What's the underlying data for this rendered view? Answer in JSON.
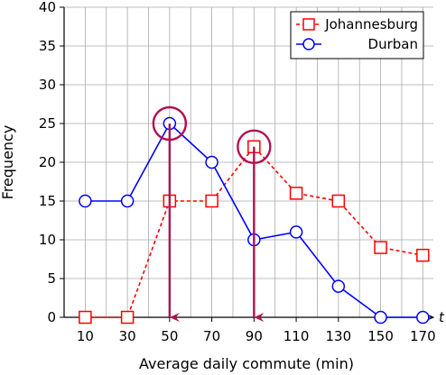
{
  "chart_data": {
    "type": "line",
    "xlabel": "Average daily commute (min)",
    "ylabel": "Frequency",
    "axis_end_label": "t",
    "x": [
      10,
      30,
      50,
      70,
      90,
      110,
      130,
      150,
      170
    ],
    "xlim": [
      0,
      175
    ],
    "ylim": [
      0,
      40
    ],
    "yticks": [
      0,
      5,
      10,
      15,
      20,
      25,
      30,
      35,
      40
    ],
    "grid": true,
    "legend_position": "top-right",
    "series": [
      {
        "name": "Johannesburg",
        "color": "#ff0000",
        "marker": "square",
        "line_style": "dashed",
        "values": [
          0,
          0,
          15,
          15,
          22,
          16,
          15,
          9,
          8
        ]
      },
      {
        "name": "Durban",
        "color": "#0000ff",
        "marker": "circle",
        "line_style": "solid",
        "values": [
          15,
          15,
          25,
          20,
          10,
          11,
          4,
          0,
          0
        ]
      }
    ],
    "annotations": [
      {
        "type": "circled-peak-with-arrow",
        "x": 50,
        "y": 25,
        "series": "Durban",
        "color": "#b0124f"
      },
      {
        "type": "circled-peak-with-arrow",
        "x": 90,
        "y": 22,
        "series": "Johannesburg",
        "color": "#b0124f"
      }
    ]
  }
}
